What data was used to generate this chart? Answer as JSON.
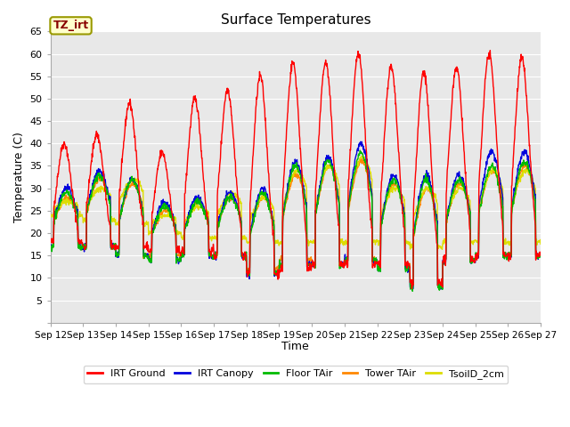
{
  "title": "Surface Temperatures",
  "ylabel": "Temperature (C)",
  "xlabel": "Time",
  "ylim": [
    0,
    65
  ],
  "yticks": [
    0,
    5,
    10,
    15,
    20,
    25,
    30,
    35,
    40,
    45,
    50,
    55,
    60,
    65
  ],
  "tz_label": "TZ_irt",
  "legend_labels": [
    "IRT Ground",
    "IRT Canopy",
    "Floor TAir",
    "Tower TAir",
    "TsoilD_2cm"
  ],
  "line_colors": [
    "#ff0000",
    "#0000dd",
    "#00bb00",
    "#ff8800",
    "#dddd00"
  ],
  "xticklabels": [
    "Sep 12",
    "Sep 13",
    "Sep 14",
    "Sep 15",
    "Sep 16",
    "Sep 17",
    "Sep 18",
    "Sep 19",
    "Sep 20",
    "Sep 21",
    "Sep 22",
    "Sep 23",
    "Sep 24",
    "Sep 25",
    "Sep 26",
    "Sep 27"
  ],
  "plot_bg": "#e8e8e8",
  "grid_color": "#ffffff",
  "linewidth": 1.0,
  "figsize": [
    6.4,
    4.8
  ],
  "dpi": 100
}
